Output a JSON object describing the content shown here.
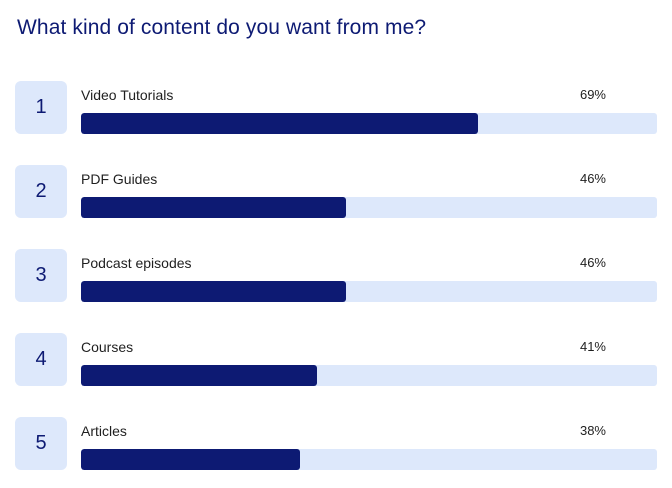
{
  "poll": {
    "question": "What kind of content do you want from me?",
    "options": [
      {
        "rank": "1",
        "label": "Video Tutorials",
        "percent_label": "69%",
        "percent": 69
      },
      {
        "rank": "2",
        "label": "PDF Guides",
        "percent_label": "46%",
        "percent": 46
      },
      {
        "rank": "3",
        "label": "Podcast episodes",
        "percent_label": "46%",
        "percent": 46
      },
      {
        "rank": "4",
        "label": "Courses",
        "percent_label": "41%",
        "percent": 41
      },
      {
        "rank": "5",
        "label": "Articles",
        "percent_label": "38%",
        "percent": 38
      }
    ]
  },
  "colors": {
    "accent": "#0d1a73",
    "track": "#dde8fb",
    "text": "#1f1f1f"
  }
}
